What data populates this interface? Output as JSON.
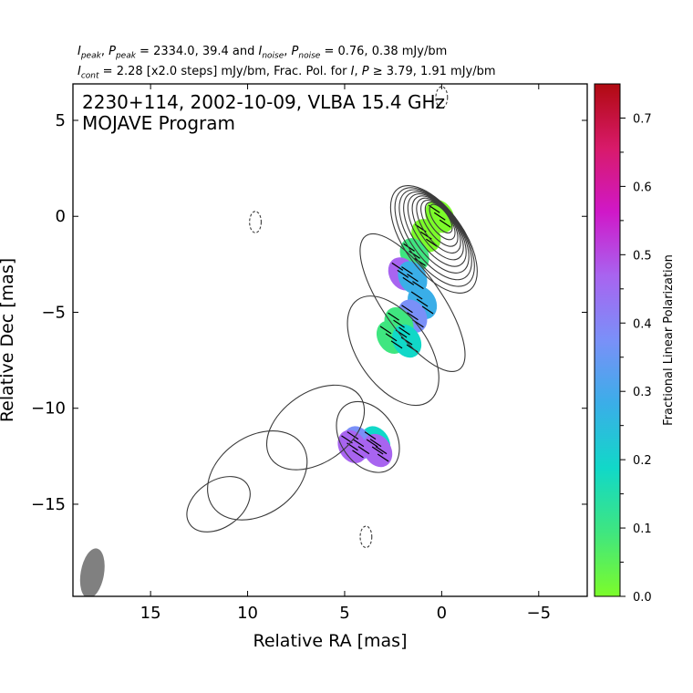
{
  "header": {
    "line1": {
      "a": "I",
      "a_sub": "peak",
      "b": ", ",
      "c": "P",
      "c_sub": "peak",
      "d": " = 2334.0, 39.4 and ",
      "e": "I",
      "e_sub": "noise",
      "f": ", ",
      "g": "P",
      "g_sub": "noise",
      "h": " = 0.76, 0.38 mJy/bm"
    },
    "line2": {
      "a": "I",
      "a_sub": "cont",
      "b": " = 2.28 [x2.0 steps] mJy/bm, Frac. Pol. for ",
      "c": "I",
      "d": ", ",
      "e": "P",
      "f": " ≥ 3.79, 1.91 mJy/bm"
    }
  },
  "plot": {
    "title_line1": "2230+114, 2002-10-09, VLBA 15.4 GHz",
    "title_line2": "MOJAVE Program"
  },
  "chart_data": {
    "type": "heatmap",
    "description_source": "radio polarization map with total-intensity contours",
    "xlabel": "Relative RA [mas]",
    "ylabel": "Relative Dec [mas]",
    "xlim": [
      19,
      -7.5
    ],
    "ylim": [
      -19.8,
      6.9
    ],
    "x_ticks": [
      "15",
      "10",
      "5",
      "0",
      "−5"
    ],
    "x_tick_values": [
      15,
      10,
      5,
      0,
      -5
    ],
    "y_ticks": [
      "5",
      "0",
      "−5",
      "−10",
      "−15"
    ],
    "y_tick_values": [
      5,
      0,
      -5,
      -10,
      -15
    ],
    "colorbar": {
      "label": "Fractional Linear Polarization",
      "range": [
        0.0,
        0.75
      ],
      "tick_labels": [
        "0.0",
        "0.1",
        "0.2",
        "0.3",
        "0.4",
        "0.5",
        "0.6",
        "0.7"
      ],
      "tick_values": [
        0.0,
        0.1,
        0.2,
        0.3,
        0.4,
        0.5,
        0.6,
        0.7
      ],
      "colors": [
        "#7cfc2a",
        "#3fe680",
        "#11d8c8",
        "#3aaee8",
        "#7a90f8",
        "#a864f0",
        "#d018c8",
        "#d81a6a",
        "#b00a10"
      ]
    },
    "beam": {
      "x": 18.0,
      "y": -18.6,
      "major": 1.3,
      "minor": 0.6,
      "pa_deg": -10,
      "color": "#808080"
    },
    "contours": {
      "color": "#3a3a3a",
      "levels_mjy": [
        2.28,
        4.56,
        9.12,
        18.24,
        36.48,
        72.96,
        145.9,
        291.8,
        583.7,
        1167.4
      ],
      "core": {
        "x": 0.0,
        "y": 0.0
      },
      "negative": [
        {
          "x": 9.6,
          "y": -0.3
        },
        {
          "x": 0.0,
          "y": 6.2
        },
        {
          "x": 3.9,
          "y": -16.7
        }
      ]
    },
    "polarization_regions": [
      {
        "x": 0.1,
        "y": 0.0,
        "frac_pol": 0.02
      },
      {
        "x": 0.8,
        "y": -1.0,
        "frac_pol": 0.04
      },
      {
        "x": 1.4,
        "y": -2.0,
        "frac_pol": 0.06
      },
      {
        "x": 2.0,
        "y": -3.0,
        "frac_pol": 0.45
      },
      {
        "x": 1.5,
        "y": -3.2,
        "frac_pol": 0.28
      },
      {
        "x": 1.0,
        "y": -4.5,
        "frac_pol": 0.3
      },
      {
        "x": 1.5,
        "y": -5.2,
        "frac_pol": 0.33
      },
      {
        "x": 2.2,
        "y": -5.6,
        "frac_pol": 0.06
      },
      {
        "x": 2.6,
        "y": -6.3,
        "frac_pol": 0.05
      },
      {
        "x": 1.8,
        "y": -6.5,
        "frac_pol": 0.22
      },
      {
        "x": 3.4,
        "y": -11.8,
        "frac_pol": 0.2
      },
      {
        "x": 4.3,
        "y": -11.8,
        "frac_pol": 0.35
      },
      {
        "x": 4.6,
        "y": -12.0,
        "frac_pol": 0.48
      },
      {
        "x": 3.3,
        "y": -12.2,
        "frac_pol": 0.5
      }
    ]
  }
}
